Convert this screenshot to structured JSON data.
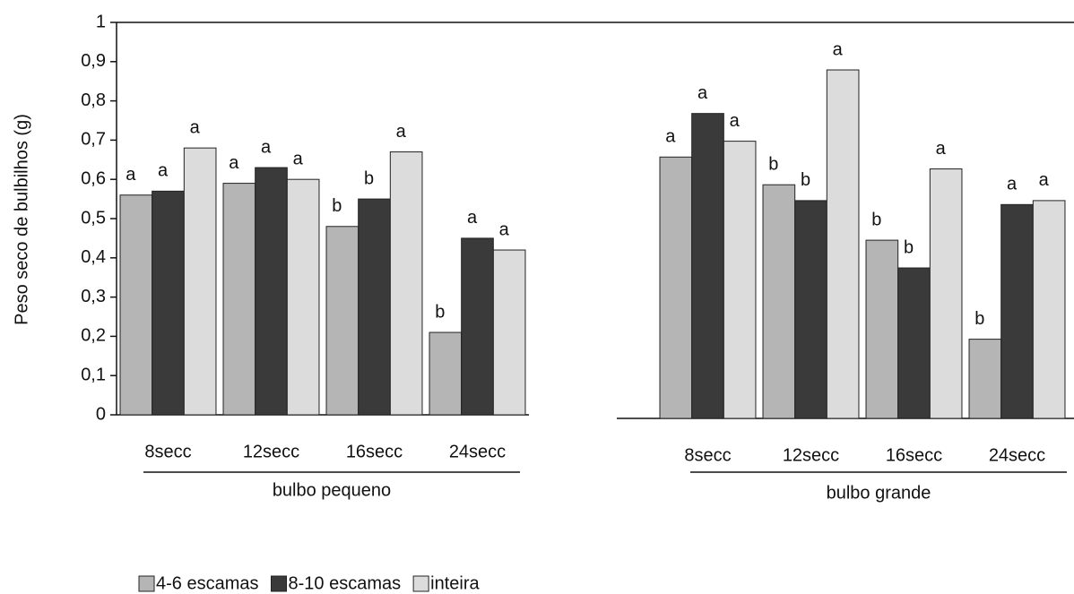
{
  "legend": [
    {
      "name": "4-6 escamas",
      "color": "#b5b5b5"
    },
    {
      "name": "8-10 escamas",
      "color": "#3a3a3a"
    },
    {
      "name": "inteira",
      "color": "#dcdcdc"
    }
  ],
  "chart_data": [
    {
      "type": "bar",
      "ylabel": "Peso seco de bulbilhos (g)",
      "group_label": "bulbo pequeno",
      "categories": [
        "8secc",
        "12secc",
        "16secc",
        "24secc"
      ],
      "series": [
        {
          "values": [
            0.56,
            0.59,
            0.48,
            0.21
          ],
          "letters": [
            "a",
            "a",
            "b",
            "b"
          ]
        },
        {
          "values": [
            0.57,
            0.63,
            0.55,
            0.45
          ],
          "letters": [
            "a",
            "a",
            "b",
            "a"
          ]
        },
        {
          "values": [
            0.68,
            0.6,
            0.67,
            0.42
          ],
          "letters": [
            "a",
            "a",
            "a",
            "a"
          ]
        }
      ],
      "ylim": [
        0,
        1
      ],
      "yticks": [
        0,
        {
          "value": 0.1,
          "label": "0,1"
        },
        {
          "value": 0.2,
          "label": "0,2"
        },
        {
          "value": 0.3,
          "label": "0,3"
        },
        {
          "value": 0.4,
          "label": "0,4"
        },
        {
          "value": 0.5,
          "label": "0,5"
        },
        {
          "value": 0.6,
          "label": "0,6"
        },
        {
          "value": 0.7,
          "label": "0,7"
        },
        {
          "value": 0.8,
          "label": "0,8"
        },
        {
          "value": 0.9,
          "label": "0,9"
        },
        1
      ]
    },
    {
      "type": "bar",
      "group_label": "bulbo grande",
      "categories": [
        "8secc",
        "12secc",
        "16secc",
        "24secc"
      ],
      "series": [
        {
          "values": [
            0.66,
            0.59,
            0.45,
            0.2
          ],
          "letters": [
            "a",
            "b",
            "b",
            "b"
          ]
        },
        {
          "values": [
            0.77,
            0.55,
            0.38,
            0.54
          ],
          "letters": [
            "a",
            "b",
            "b",
            "a"
          ]
        },
        {
          "values": [
            0.7,
            0.88,
            0.63,
            0.55
          ],
          "letters": [
            "a",
            "a",
            "a",
            "a"
          ]
        }
      ],
      "ylim": [
        0,
        1
      ]
    }
  ]
}
